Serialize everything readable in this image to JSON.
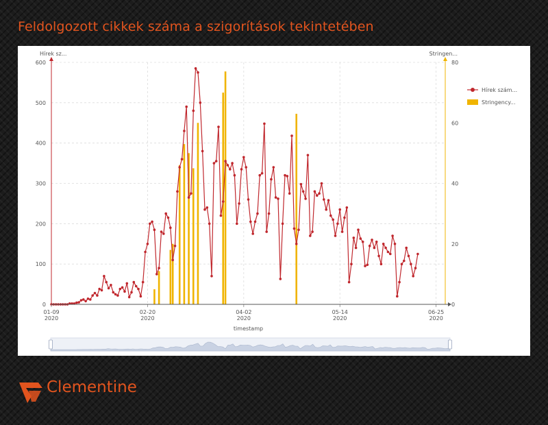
{
  "page": {
    "title": "Feldolgozott cikkek száma a szigorítások tekintetében",
    "brand": "Clementine",
    "accent_color": "#e2541e"
  },
  "chart_data": {
    "type": "line",
    "xlabel": "timestamp",
    "y_left_label": "Hírek sz...",
    "y_right_label": "Stringen...",
    "y_left_ticks": [
      0,
      100,
      200,
      300,
      400,
      500,
      600
    ],
    "y_right_ticks": [
      0,
      20,
      40,
      60,
      80
    ],
    "ylim_left": [
      0,
      600
    ],
    "ylim_right": [
      0,
      80
    ],
    "x_ticks": [
      {
        "day": 0,
        "line1": "01-09",
        "line2": "2020"
      },
      {
        "day": 42,
        "line1": "02-20",
        "line2": "2020"
      },
      {
        "day": 84,
        "line1": "04-02",
        "line2": "2020"
      },
      {
        "day": 126,
        "line1": "05-14",
        "line2": "2020"
      },
      {
        "day": 168,
        "line1": "06-25",
        "line2": "2020"
      }
    ],
    "x_range_days": [
      0,
      172
    ],
    "grid": true,
    "legend_position": "right",
    "series": [
      {
        "name": "Hírek szám...",
        "kind": "line",
        "axis": "left",
        "color": "#c0272d",
        "start_date": "2020-01-09",
        "values": [
          0,
          0,
          0,
          0,
          0,
          0,
          0,
          0,
          2,
          2,
          2,
          4,
          5,
          10,
          12,
          8,
          14,
          12,
          22,
          28,
          22,
          38,
          35,
          70,
          55,
          40,
          48,
          30,
          25,
          22,
          38,
          42,
          32,
          52,
          18,
          30,
          55,
          45,
          38,
          20,
          55,
          130,
          150,
          200,
          205,
          185,
          75,
          90,
          180,
          175,
          225,
          215,
          190,
          110,
          145,
          280,
          340,
          360,
          430,
          490,
          265,
          275,
          480,
          585,
          575,
          500,
          380,
          235,
          240,
          200,
          70,
          350,
          355,
          440,
          220,
          255,
          355,
          345,
          335,
          350,
          320,
          200,
          250,
          335,
          365,
          340,
          260,
          205,
          175,
          205,
          225,
          320,
          325,
          448,
          180,
          225,
          310,
          340,
          265,
          262,
          63,
          200,
          320,
          318,
          275,
          418,
          188,
          150,
          185,
          298,
          280,
          262,
          370,
          170,
          180,
          280,
          270,
          275,
          300,
          260,
          235,
          258,
          220,
          210,
          170,
          200,
          235,
          180,
          215,
          240,
          55,
          100,
          165,
          140,
          185,
          163,
          155,
          95,
          98,
          145,
          160,
          140,
          155,
          120,
          100,
          150,
          140,
          130,
          125,
          170,
          150,
          20,
          55,
          100,
          108,
          140,
          120,
          100,
          70,
          90,
          125
        ]
      },
      {
        "name": "Stringency...",
        "kind": "bar",
        "axis": "right",
        "color": "#f0b400",
        "bars": [
          {
            "day": 45,
            "value": 5
          },
          {
            "day": 47,
            "value": 11
          },
          {
            "day": 52,
            "value": 18
          },
          {
            "day": 53,
            "value": 20
          },
          {
            "day": 56,
            "value": 46
          },
          {
            "day": 58,
            "value": 53
          },
          {
            "day": 60,
            "value": 50
          },
          {
            "day": 62,
            "value": 45
          },
          {
            "day": 64,
            "value": 60
          },
          {
            "day": 75,
            "value": 70
          },
          {
            "day": 76,
            "value": 77
          },
          {
            "day": 107,
            "value": 63
          }
        ]
      }
    ]
  }
}
